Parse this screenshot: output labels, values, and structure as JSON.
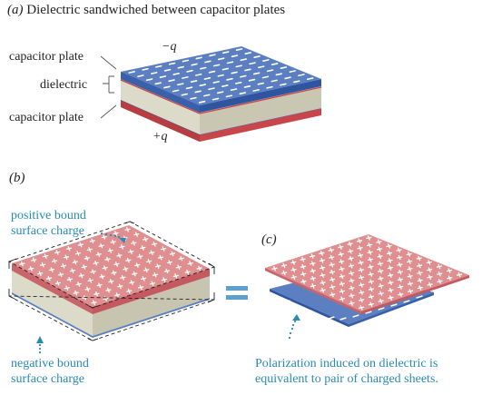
{
  "panel_a": {
    "caption": "(a) Dielectric sandwiched between capacitor plates",
    "label_top_plate": "capacitor plate",
    "label_dielectric": "dielectric",
    "label_bottom_plate": "capacitor plate",
    "charge_top": "−q",
    "charge_bottom": "+q"
  },
  "panel_b": {
    "caption": "(b)",
    "label_positive_line1": "positive bound",
    "label_positive_line2": "surface charge",
    "label_negative_line1": "negative bound",
    "label_negative_line2": "surface charge"
  },
  "equals": "=",
  "panel_c": {
    "caption": "(c)",
    "text_line1": "Polarization induced on dielectric is",
    "text_line2": "equivalent to pair of charged sheets."
  },
  "colors": {
    "plate_blue_top": "#5b7fc0",
    "plate_blue_side": "#2f55a0",
    "plate_red_top": "#df8f8f",
    "plate_red_side": "#c8464a",
    "dielectric_side": "#d7d5c2",
    "dielectric_dark": "#c5c3ad",
    "accent_blue": "#2a8ab5"
  }
}
